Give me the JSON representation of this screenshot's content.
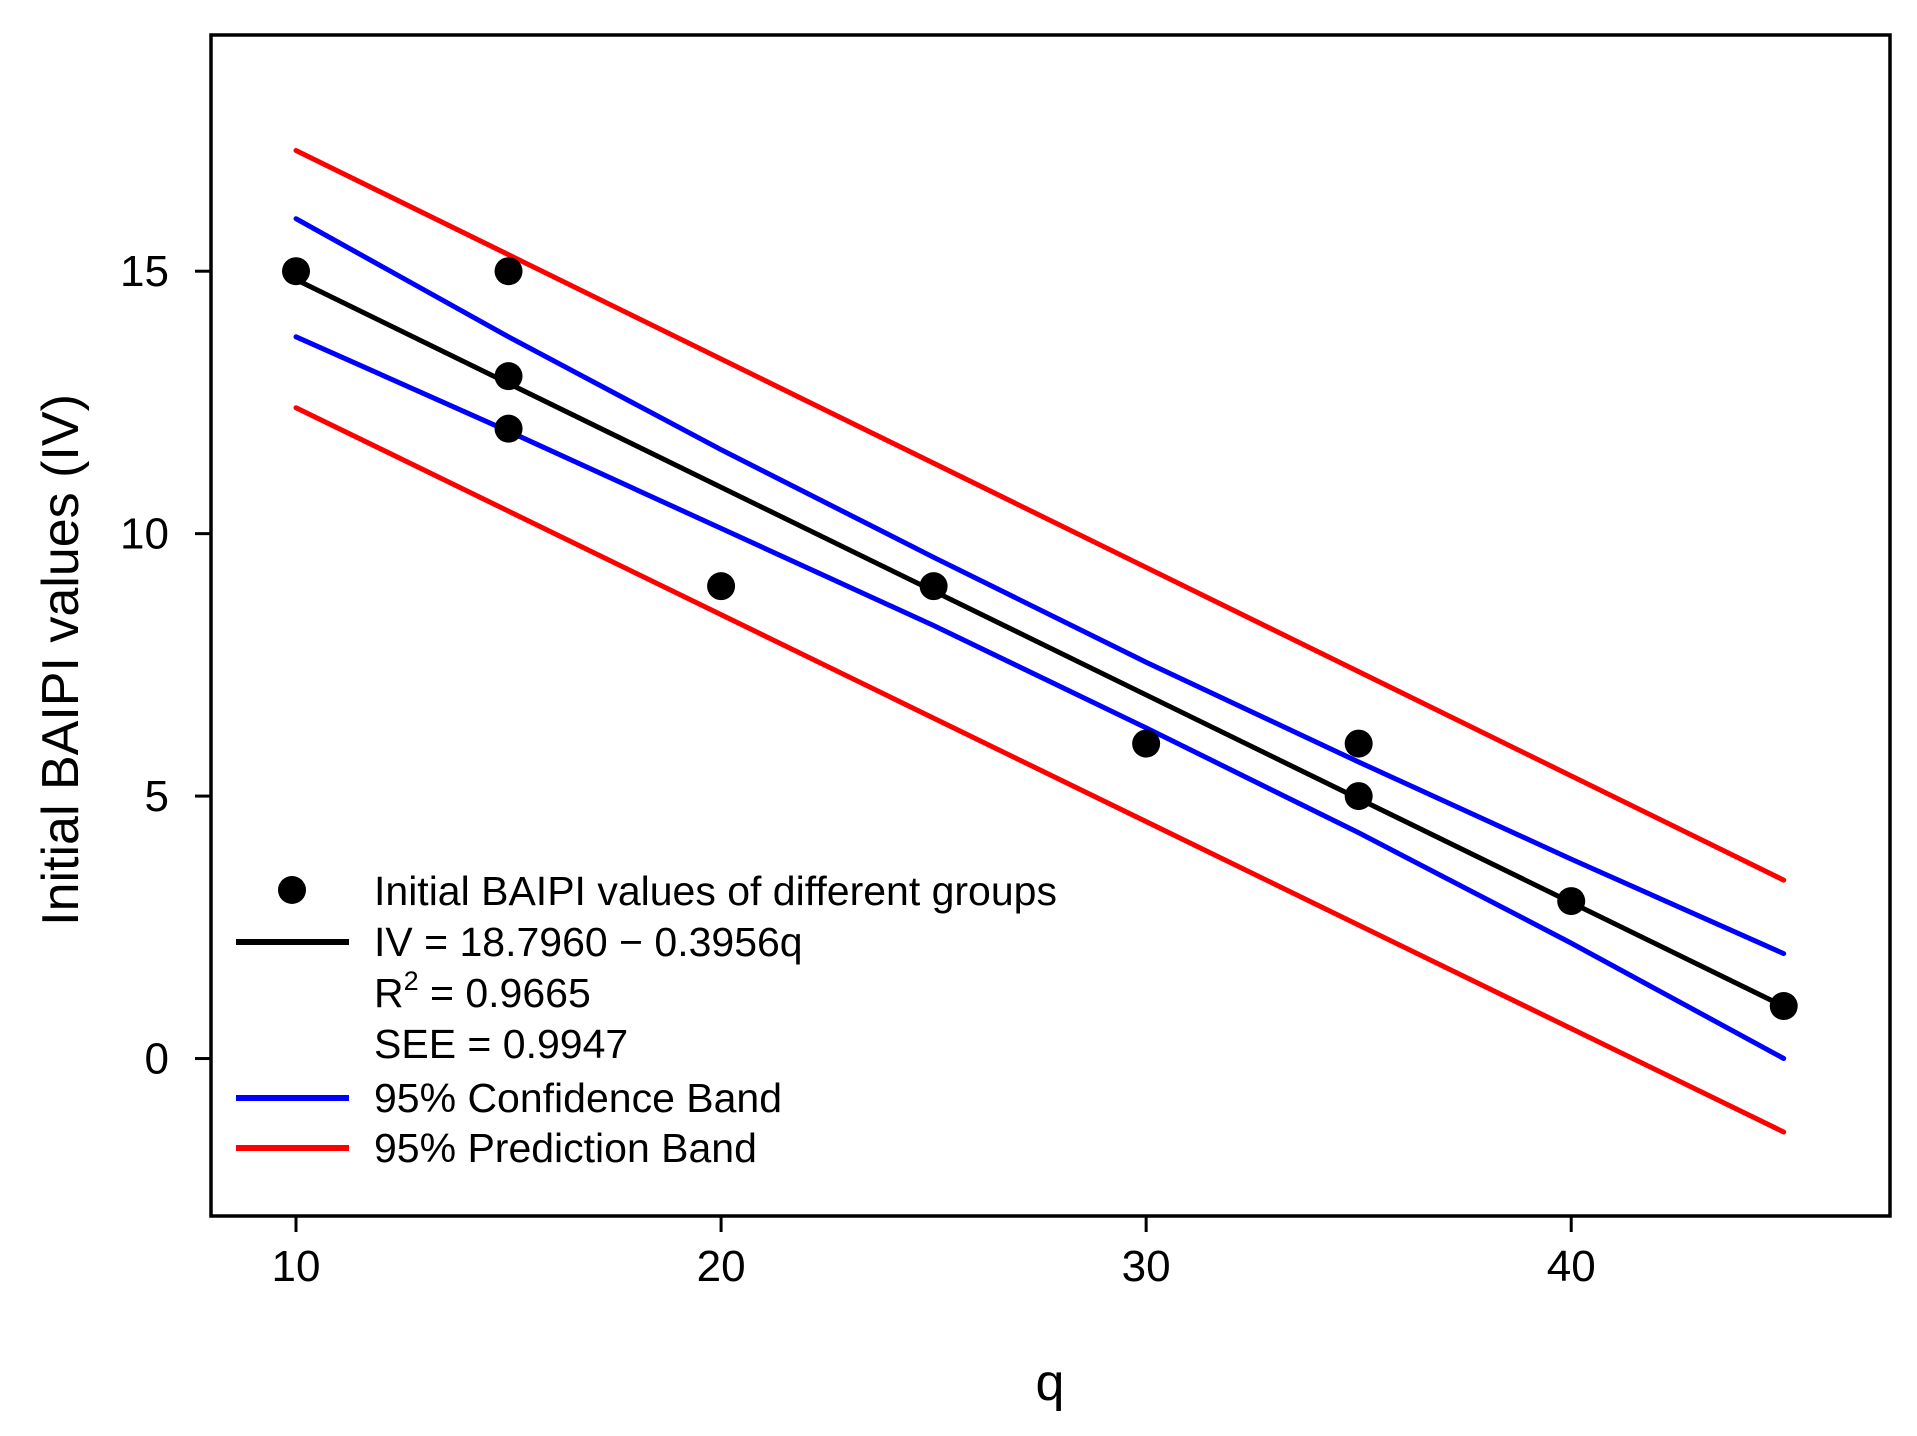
{
  "chart_data": {
    "type": "scatter",
    "title": "",
    "xlabel": "q",
    "ylabel": "Initial BAIPI values (IV)",
    "xlim": [
      8,
      47.5
    ],
    "ylim": [
      -3,
      19.5
    ],
    "xticks": [
      10,
      20,
      30,
      40
    ],
    "yticks": [
      0,
      5,
      10,
      15
    ],
    "grid": false,
    "legend_position": "bottom-left",
    "points": {
      "name": "Initial BAIPI values of different groups",
      "color": "#000000",
      "x": [
        10,
        15,
        15,
        15,
        20,
        25,
        30,
        35,
        35,
        40,
        45
      ],
      "y": [
        15,
        15,
        13,
        12,
        9,
        9,
        6,
        6,
        5,
        3,
        1
      ]
    },
    "fit": {
      "name": "IV = 18.7960 − 0.3956q",
      "color": "#000000",
      "intercept": 18.796,
      "slope": -0.3956,
      "x_range": [
        10,
        45
      ]
    },
    "annotations": {
      "r2_prefix": "R",
      "r2_sup": "2",
      "r2_value": " = 0.9665",
      "see": "SEE = 0.9947"
    },
    "bands": [
      {
        "name": "95% Confidence Band",
        "color": "#0000ff",
        "upper": {
          "x": [
            10,
            15,
            20,
            25,
            30,
            35,
            40,
            45
          ],
          "y": [
            16.0,
            13.75,
            11.6,
            9.55,
            7.55,
            5.65,
            3.8,
            2.0
          ]
        },
        "lower": {
          "x": [
            10,
            15,
            20,
            25,
            30,
            35,
            40,
            45
          ],
          "y": [
            13.75,
            11.95,
            10.1,
            8.25,
            6.3,
            4.3,
            2.2,
            0.0
          ]
        }
      },
      {
        "name": "95% Prediction Band",
        "color": "#ff0000",
        "upper": {
          "x": [
            10,
            45
          ],
          "y": [
            17.3,
            3.4
          ]
        },
        "lower": {
          "x": [
            10,
            45
          ],
          "y": [
            12.4,
            -1.4
          ]
        }
      }
    ]
  }
}
